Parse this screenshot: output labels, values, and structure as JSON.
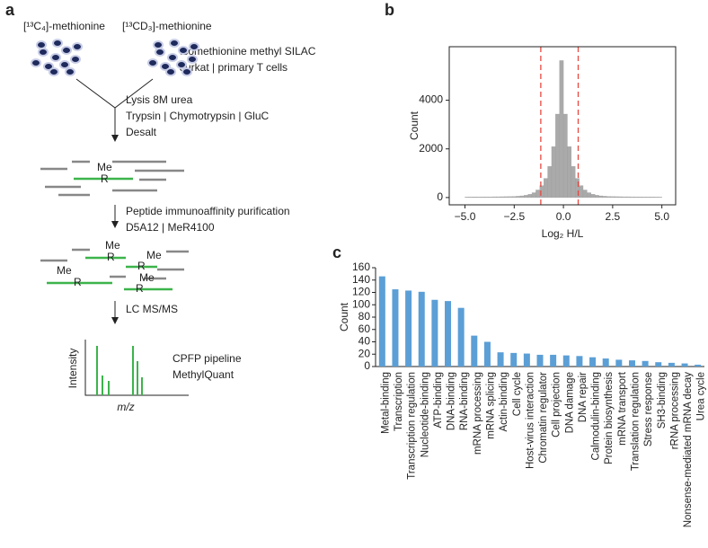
{
  "diagram": {
    "panel": "a",
    "label_left": "[¹³C₄]-methionine",
    "label_right": "[¹³CD₃]-methionine",
    "culture": [
      "Isomethionine methyl SILAC",
      "Jurkat | primary T cells"
    ],
    "step1": [
      "Lysis 8M urea",
      "Trypsin | Chymotrypsin | GluC",
      "Desalt"
    ],
    "step2": [
      "Peptide immunoaffinity purification",
      "D5A12 | MeR4100"
    ],
    "step3": "LC MS/MS",
    "modification": "Me",
    "residue": "R",
    "spectrum_ylabel": "Intensity",
    "spectrum_xlabel": "m/z",
    "analysis": [
      "CPFP pipeline",
      "MethylQuant"
    ]
  },
  "chart_data": [
    {
      "type": "histogram",
      "panel": "b",
      "xlabel": "Log₂ H/L",
      "ylabel": "Count",
      "color": "#aaaaaa",
      "bins": [
        -5.0,
        -4.8,
        -4.6,
        -4.4,
        -4.2,
        -4.0,
        -3.8,
        -3.6,
        -3.4,
        -3.2,
        -3.0,
        -2.8,
        -2.6,
        -2.4,
        -2.2,
        -2.0,
        -1.8,
        -1.6,
        -1.4,
        -1.2,
        -1.0,
        -0.8,
        -0.6,
        -0.4,
        -0.2,
        0.0,
        0.2,
        0.4,
        0.6,
        0.8,
        1.0,
        1.2,
        1.4,
        1.6,
        1.8,
        2.0,
        2.2,
        2.4,
        2.6,
        2.8,
        3.0,
        3.2,
        3.4,
        3.6,
        3.8,
        4.0,
        4.2,
        4.4,
        4.6,
        4.8,
        5.0
      ],
      "values": [
        20,
        22,
        25,
        24,
        26,
        28,
        27,
        30,
        31,
        33,
        35,
        38,
        44,
        53,
        68,
        92,
        132,
        198,
        310,
        490,
        786,
        1280,
        2090,
        3430,
        5630,
        3430,
        2090,
        1280,
        786,
        490,
        310,
        198,
        132,
        92,
        68,
        53,
        44,
        38,
        35,
        33,
        31,
        30,
        28,
        27,
        26,
        24,
        23,
        22,
        20,
        18
      ],
      "vlines": [
        -1.15,
        0.75
      ],
      "vline_color": "#e8473f",
      "xlim": [
        -5.8,
        5.7
      ],
      "ylim": [
        -300,
        6200
      ],
      "xticks": [
        {
          "value": -5,
          "label": "−5.0"
        },
        {
          "value": -2.5,
          "label": "−2.5"
        },
        {
          "value": 0,
          "label": "0.0"
        },
        {
          "value": 2.5,
          "label": "2.5"
        },
        {
          "value": 5,
          "label": "5.0"
        }
      ],
      "yticks": [
        0,
        2000,
        4000
      ]
    },
    {
      "type": "bar",
      "panel": "c",
      "ylabel": "Count",
      "color": "#5b9fd6",
      "categories": [
        "Metal-binding",
        "Transcription",
        "Transcription regulation",
        "Nucleotide-binding",
        "ATP-binding",
        "DNA-binding",
        "RNA-binding",
        "mRNA processing",
        "mRNA splicing",
        "Actin-binding",
        "Cell cycle",
        "Host-virus interaction",
        "Chromatin regulator",
        "Cell projection",
        "DNA damage",
        "DNA repair",
        "Calmodulin-binding",
        "Protein biosynthesis",
        "mRNA transport",
        "Translation regulation",
        "Stress response",
        "SH3-binding",
        "rRNA processing",
        "Nonsense-mediated mRNA decay",
        "Urea cycle"
      ],
      "values": [
        146,
        125,
        123,
        121,
        108,
        106,
        95,
        50,
        40,
        23,
        22,
        21,
        19,
        19,
        18,
        17,
        15,
        13,
        11,
        10,
        9,
        7,
        6,
        5,
        3
      ],
      "ylim": [
        0,
        160
      ],
      "yticks": [
        0,
        20,
        40,
        60,
        80,
        100,
        120,
        140,
        160
      ]
    }
  ]
}
